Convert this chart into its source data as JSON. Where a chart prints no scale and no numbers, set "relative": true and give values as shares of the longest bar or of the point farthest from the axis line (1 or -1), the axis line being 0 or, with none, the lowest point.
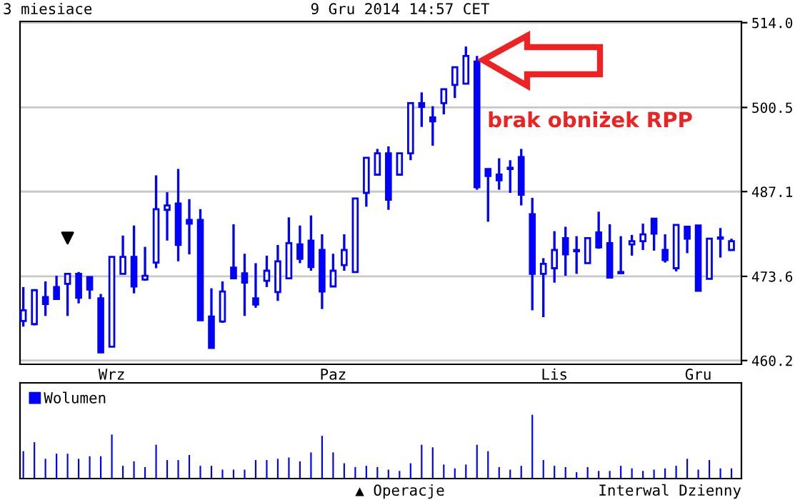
{
  "chart_data": [
    {
      "type": "candlestick",
      "title": "3 miesiace",
      "subtitle": "9 Gru 2014 14:57 CET",
      "categories": [
        null,
        null,
        null,
        null,
        null,
        null,
        null,
        null,
        "Wrz",
        null,
        null,
        null,
        null,
        null,
        null,
        null,
        null,
        null,
        null,
        null,
        null,
        null,
        null,
        null,
        null,
        null,
        null,
        null,
        "Paz",
        null,
        null,
        null,
        null,
        null,
        null,
        null,
        null,
        null,
        null,
        null,
        null,
        null,
        null,
        null,
        null,
        null,
        null,
        null,
        "Lis",
        null,
        null,
        null,
        null,
        null,
        null,
        null,
        null,
        null,
        null,
        null,
        null,
        "Gru",
        null,
        null,
        null
      ],
      "ohlc": [
        [
          466.5,
          471.9,
          465.6,
          468.2
        ],
        [
          466.0,
          471.5,
          465.8,
          471.4
        ],
        [
          470.3,
          472.8,
          467.3,
          469.2
        ],
        [
          471.9,
          473.7,
          470.0,
          470.0
        ],
        [
          472.4,
          474.0,
          467.3,
          474.0
        ],
        [
          474.0,
          474.3,
          469.3,
          470.2
        ],
        [
          473.5,
          473.5,
          470.0,
          471.5
        ],
        [
          470.1,
          470.8,
          461.5,
          461.5
        ],
        [
          462.4,
          476.7,
          462.4,
          476.7
        ],
        [
          474.0,
          480.1,
          474.0,
          476.7
        ],
        [
          476.7,
          481.7,
          470.9,
          472.0
        ],
        [
          473.1,
          478.3,
          472.9,
          473.7
        ],
        [
          475.8,
          489.7,
          474.9,
          484.3
        ],
        [
          484.2,
          487.0,
          479.3,
          484.9
        ],
        [
          485.2,
          490.7,
          476.0,
          478.6
        ],
        [
          482.6,
          485.9,
          477.1,
          482.0
        ],
        [
          482.6,
          484.3,
          466.6,
          466.6
        ],
        [
          467.2,
          471.7,
          462.2,
          462.2
        ],
        [
          466.4,
          472.8,
          466.2,
          471.2
        ],
        [
          475.0,
          481.9,
          473.3,
          473.3
        ],
        [
          474.1,
          477.2,
          467.3,
          472.6
        ],
        [
          470.1,
          475.7,
          468.6,
          469.1
        ],
        [
          472.9,
          476.9,
          471.9,
          474.5
        ],
        [
          471.1,
          478.6,
          469.7,
          476.0
        ],
        [
          473.3,
          483.0,
          473.3,
          478.9
        ],
        [
          478.7,
          481.7,
          475.7,
          476.4
        ],
        [
          479.3,
          483.3,
          474.5,
          475.1
        ],
        [
          477.8,
          480.3,
          468.4,
          471.2
        ],
        [
          472.0,
          477.2,
          472.0,
          474.5
        ],
        [
          475.4,
          480.3,
          474.5,
          477.8
        ],
        [
          474.3,
          486.0,
          474.3,
          486.0
        ],
        [
          486.9,
          492.5,
          484.7,
          492.5
        ],
        [
          489.8,
          493.9,
          489.8,
          493.2
        ],
        [
          493.2,
          494.3,
          484.2,
          485.8
        ],
        [
          489.8,
          493.2,
          489.8,
          493.2
        ],
        [
          493.2,
          501.2,
          492.1,
          501.2
        ],
        [
          501.2,
          502.9,
          497.4,
          500.6
        ],
        [
          498.9,
          500.7,
          494.4,
          498.3
        ],
        [
          501.2,
          503.4,
          499.4,
          503.4
        ],
        [
          504.1,
          506.9,
          502.0,
          506.9
        ],
        [
          504.3,
          510.2,
          504.3,
          508.7
        ],
        [
          507.8,
          508.7,
          487.4,
          487.8
        ],
        [
          490.7,
          490.7,
          482.3,
          489.6
        ],
        [
          489.8,
          492.4,
          487.4,
          488.9
        ],
        [
          490.9,
          492.1,
          486.9,
          490.7
        ],
        [
          492.6,
          493.9,
          484.9,
          486.6
        ],
        [
          483.5,
          486.1,
          468.2,
          474.0
        ],
        [
          474.0,
          476.5,
          467.1,
          475.6
        ],
        [
          474.9,
          480.8,
          472.6,
          477.8
        ],
        [
          479.7,
          481.5,
          473.7,
          477.1
        ],
        [
          477.8,
          480.0,
          474.0,
          477.6
        ],
        [
          475.7,
          479.7,
          475.7,
          479.7
        ],
        [
          480.6,
          483.9,
          478.0,
          478.2
        ],
        [
          478.9,
          481.9,
          473.4,
          473.4
        ],
        [
          474.1,
          480.0,
          474.1,
          474.3
        ],
        [
          478.7,
          480.2,
          476.9,
          479.2
        ],
        [
          479.2,
          482.0,
          477.8,
          480.3
        ],
        [
          482.8,
          482.8,
          477.7,
          480.4
        ],
        [
          477.8,
          480.3,
          475.8,
          476.2
        ],
        [
          474.9,
          481.8,
          474.4,
          481.8
        ],
        [
          481.5,
          481.5,
          477.3,
          479.6
        ],
        [
          481.7,
          481.7,
          471.3,
          471.3
        ],
        [
          473.2,
          479.6,
          473.2,
          479.6
        ],
        [
          479.8,
          481.3,
          476.6,
          479.6
        ],
        [
          477.8,
          479.6,
          477.8,
          479.2
        ]
      ],
      "color": "#0000ff",
      "series": [
        {
          "type": "scatter",
          "color": "#000000",
          "marker": "triangle",
          "values": [
            null,
            null,
            null,
            null,
            479.7,
            null,
            null,
            null,
            null,
            null,
            null,
            null,
            null,
            null,
            null,
            null,
            null,
            null,
            null,
            null,
            null,
            null,
            null,
            null,
            null,
            null,
            null,
            null,
            null,
            null,
            null,
            null,
            null,
            null,
            null,
            null,
            null,
            null,
            null,
            null,
            null,
            null,
            null,
            null,
            null,
            null,
            null,
            null,
            null,
            null,
            null,
            null,
            null,
            null,
            null,
            null,
            null,
            null,
            null,
            null,
            null,
            null,
            null,
            null,
            null
          ]
        }
      ],
      "ylim": [
        459.6,
        514.2
      ],
      "yticks": [
        460.2,
        473.6,
        487.1,
        500.5,
        {
          "value": 514.0,
          "label": "514.0"
        }
      ],
      "grid": "y",
      "annotations": [
        "brak obniżek RPP",
        "▲ Operacje",
        "Interwal Dzienny"
      ]
    },
    {
      "type": "bar",
      "relative": true,
      "legend": "top left",
      "categories": [
        null,
        null,
        null,
        null,
        null,
        null,
        null,
        null,
        null,
        null,
        null,
        null,
        null,
        null,
        null,
        null,
        null,
        null,
        null,
        null,
        null,
        null,
        null,
        null,
        null,
        null,
        null,
        null,
        null,
        null,
        null,
        null,
        null,
        null,
        null,
        null,
        null,
        null,
        null,
        null,
        null,
        null,
        null,
        null,
        null,
        null,
        null,
        null,
        null,
        null,
        null,
        null,
        null,
        null,
        null,
        null,
        null,
        null,
        null,
        null,
        null,
        null,
        null,
        null,
        null
      ],
      "series": [
        {
          "name": "Wolumen",
          "color": "#0000ff",
          "values": [
            0.43,
            0.57,
            0.31,
            0.39,
            0.39,
            0.31,
            0.35,
            0.35,
            0.69,
            0.2,
            0.27,
            0.18,
            0.53,
            0.29,
            0.29,
            0.37,
            0.2,
            0.2,
            0.14,
            0.14,
            0.14,
            0.29,
            0.29,
            0.31,
            0.33,
            0.27,
            0.41,
            0.67,
            0.41,
            0.24,
            0.18,
            0.2,
            0.18,
            0.14,
            0.12,
            0.24,
            0.53,
            0.49,
            0.22,
            0.16,
            0.22,
            0.53,
            0.43,
            0.18,
            0.14,
            0.2,
            1,
            0.29,
            0.2,
            0.18,
            0.1,
            0.18,
            0.12,
            0.12,
            0.2,
            0.16,
            0.12,
            0.14,
            0.16,
            0.2,
            0.31,
            0.14,
            0.29,
            0.16,
            0.16
          ]
        }
      ]
    }
  ]
}
